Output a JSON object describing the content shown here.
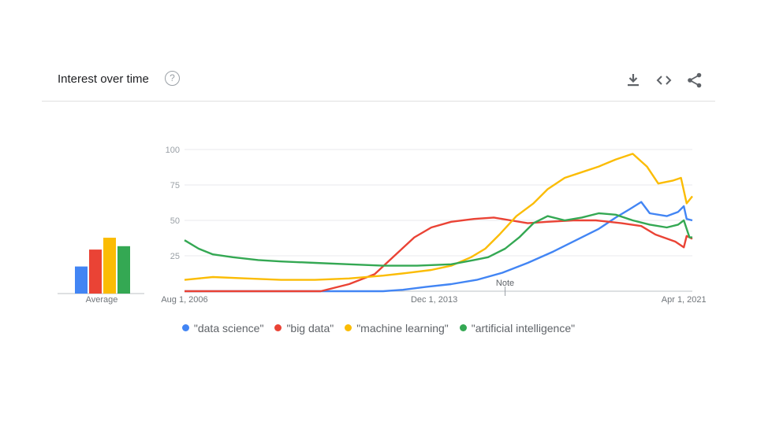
{
  "header": {
    "title": "Interest over time",
    "help_glyph": "?"
  },
  "toolbar": {
    "icons": [
      "download-icon",
      "embed-icon",
      "share-icon"
    ]
  },
  "average": {
    "label": "Average"
  },
  "note": {
    "label": "Note"
  },
  "colors": {
    "data science": "#4285f4",
    "big data": "#ea4335",
    "machine learning": "#fbbc04",
    "artificial intelligence": "#34a853"
  },
  "legend": [
    {
      "label": "\"data science\"",
      "color": "#4285f4"
    },
    {
      "label": "\"big data\"",
      "color": "#ea4335"
    },
    {
      "label": "\"machine learning\"",
      "color": "#fbbc04"
    },
    {
      "label": "\"artificial intelligence\"",
      "color": "#34a853"
    }
  ],
  "chart_data": [
    {
      "type": "line",
      "x_tick_labels": [
        "Aug 1, 2006",
        "Dec 1, 2013",
        "Apr 1, 2021"
      ],
      "y_tick_labels": [
        "100",
        "75",
        "50",
        "25"
      ],
      "ylim": [
        0,
        100
      ],
      "xlim": [
        "2006-08",
        "2021-07"
      ],
      "grid": true,
      "series": [
        {
          "name": "\"data science\"",
          "color": "#4285f4",
          "points": [
            [
              "2006-08",
              0
            ],
            [
              "2010-08",
              0
            ],
            [
              "2012-06",
              0
            ],
            [
              "2013-01",
              1
            ],
            [
              "2013-09",
              3
            ],
            [
              "2014-06",
              5
            ],
            [
              "2015-03",
              8
            ],
            [
              "2015-12",
              13
            ],
            [
              "2016-09",
              20
            ],
            [
              "2017-06",
              28
            ],
            [
              "2018-02",
              36
            ],
            [
              "2018-10",
              44
            ],
            [
              "2019-04",
              52
            ],
            [
              "2019-09",
              58
            ],
            [
              "2020-01",
              63
            ],
            [
              "2020-04",
              55
            ],
            [
              "2020-10",
              53
            ],
            [
              "2021-02",
              56
            ],
            [
              "2021-04",
              60
            ],
            [
              "2021-05",
              51
            ],
            [
              "2021-07",
              50
            ]
          ]
        },
        {
          "name": "\"big data\"",
          "color": "#ea4335",
          "points": [
            [
              "2006-08",
              0
            ],
            [
              "2010-01",
              0
            ],
            [
              "2010-08",
              0
            ],
            [
              "2011-06",
              5
            ],
            [
              "2012-03",
              12
            ],
            [
              "2012-10",
              25
            ],
            [
              "2013-05",
              38
            ],
            [
              "2013-11",
              45
            ],
            [
              "2014-06",
              49
            ],
            [
              "2015-02",
              51
            ],
            [
              "2015-09",
              52
            ],
            [
              "2016-03",
              50
            ],
            [
              "2016-09",
              48
            ],
            [
              "2017-04",
              49
            ],
            [
              "2018-01",
              50
            ],
            [
              "2018-09",
              50
            ],
            [
              "2019-06",
              48
            ],
            [
              "2020-01",
              46
            ],
            [
              "2020-06",
              40
            ],
            [
              "2021-01",
              35
            ],
            [
              "2021-04",
              31
            ],
            [
              "2021-05",
              39
            ],
            [
              "2021-07",
              37
            ]
          ]
        },
        {
          "name": "\"machine learning\"",
          "color": "#fbbc04",
          "points": [
            [
              "2006-08",
              8
            ],
            [
              "2007-06",
              10
            ],
            [
              "2008-06",
              9
            ],
            [
              "2009-06",
              8
            ],
            [
              "2010-06",
              8
            ],
            [
              "2011-06",
              9
            ],
            [
              "2012-06",
              11
            ],
            [
              "2013-03",
              13
            ],
            [
              "2013-11",
              15
            ],
            [
              "2014-06",
              18
            ],
            [
              "2015-01",
              24
            ],
            [
              "2015-06",
              30
            ],
            [
              "2015-11",
              40
            ],
            [
              "2016-05",
              53
            ],
            [
              "2016-11",
              62
            ],
            [
              "2017-04",
              72
            ],
            [
              "2017-10",
              80
            ],
            [
              "2018-04",
              84
            ],
            [
              "2018-10",
              88
            ],
            [
              "2019-04",
              93
            ],
            [
              "2019-10",
              97
            ],
            [
              "2020-03",
              88
            ],
            [
              "2020-07",
              76
            ],
            [
              "2020-12",
              78
            ],
            [
              "2021-03",
              80
            ],
            [
              "2021-05",
              62
            ],
            [
              "2021-07",
              67
            ]
          ]
        },
        {
          "name": "\"artificial intelligence\"",
          "color": "#34a853",
          "points": [
            [
              "2006-08",
              36
            ],
            [
              "2007-01",
              30
            ],
            [
              "2007-06",
              26
            ],
            [
              "2008-01",
              24
            ],
            [
              "2008-10",
              22
            ],
            [
              "2009-06",
              21
            ],
            [
              "2010-06",
              20
            ],
            [
              "2011-06",
              19
            ],
            [
              "2012-06",
              18
            ],
            [
              "2013-06",
              18
            ],
            [
              "2014-06",
              19
            ],
            [
              "2015-02",
              22
            ],
            [
              "2015-07",
              24
            ],
            [
              "2016-01",
              30
            ],
            [
              "2016-06",
              38
            ],
            [
              "2016-11",
              48
            ],
            [
              "2017-04",
              53
            ],
            [
              "2017-10",
              50
            ],
            [
              "2018-04",
              52
            ],
            [
              "2018-10",
              55
            ],
            [
              "2019-04",
              54
            ],
            [
              "2019-10",
              50
            ],
            [
              "2020-04",
              47
            ],
            [
              "2020-10",
              45
            ],
            [
              "2021-02",
              47
            ],
            [
              "2021-04",
              50
            ],
            [
              "2021-06",
              38
            ],
            [
              "2021-07",
              38
            ]
          ]
        }
      ]
    },
    {
      "type": "bar",
      "categories": [
        "\"data science\"",
        "\"big data\"",
        "\"machine learning\"",
        "\"artificial intelligence\""
      ],
      "values": [
        16,
        26,
        33,
        28
      ],
      "colors": [
        "#4285f4",
        "#ea4335",
        "#fbbc04",
        "#34a853"
      ],
      "xlabel": "Average",
      "ylim": [
        0,
        100
      ]
    }
  ]
}
